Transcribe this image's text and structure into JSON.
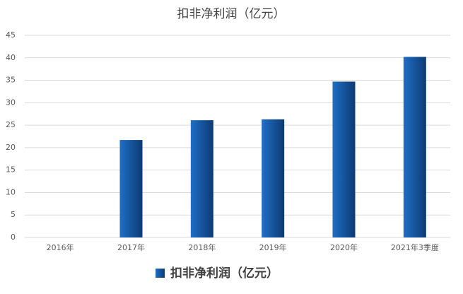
{
  "chart_data": {
    "type": "bar",
    "title": "扣非净利润（亿元）",
    "categories": [
      "2016年",
      "2017年",
      "2018年",
      "2019年",
      "2020年",
      "2021年3季度"
    ],
    "series": [
      {
        "name": "扣非净利润（亿元）",
        "color": "#1f6fc5",
        "values": [
          null,
          21.7,
          26.1,
          26.3,
          34.7,
          40.2
        ]
      }
    ],
    "ylim": [
      0,
      45
    ],
    "yticks": [
      0,
      5,
      10,
      15,
      20,
      25,
      30,
      35,
      40,
      45
    ],
    "grid": true,
    "legend": "bottom"
  }
}
